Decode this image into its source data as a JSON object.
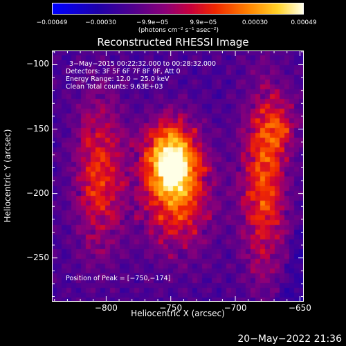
{
  "chart_data": {
    "type": "heatmap",
    "title": "Reconstructed RHESSI Image",
    "xlabel": "Heliocentric X (arcsec)",
    "ylabel": "Heliocentric Y (arcsec)",
    "xlim": [
      -842,
      -647
    ],
    "ylim": [
      -284,
      -89
    ],
    "x_ticks": [
      -800,
      -750,
      -700,
      -650
    ],
    "y_ticks": [
      -100,
      -150,
      -200,
      -250
    ],
    "x_tick_labels": [
      "−800",
      "−750",
      "−700",
      "−650"
    ],
    "y_tick_labels": [
      "−100",
      "−150",
      "−200",
      "−250"
    ],
    "colorbar": {
      "min": -0.00049,
      "max": 0.00049,
      "tick_labels": [
        "−0.00049",
        "−0.00030",
        "−9.9e−05",
        "9.9e−05",
        "0.00030",
        "0.00049"
      ],
      "tick_values": [
        -0.00049,
        -0.0003,
        -9.9e-05,
        9.9e-05,
        0.0003,
        0.00049
      ],
      "unit_label": "(photons cm⁻² s⁻¹ asec⁻²)"
    },
    "sources": [
      {
        "x": -750,
        "y": -174,
        "sx": 14,
        "sy": 20,
        "amp": 1.0
      },
      {
        "x": -745,
        "y": -205,
        "sx": 18,
        "sy": 28,
        "amp": 0.55
      },
      {
        "x": -805,
        "y": -185,
        "sx": 13,
        "sy": 40,
        "amp": 0.55
      },
      {
        "x": -678,
        "y": -190,
        "sx": 12,
        "sy": 48,
        "amp": 0.62
      },
      {
        "x": -665,
        "y": -148,
        "sx": 10,
        "sy": 14,
        "amp": 0.35
      }
    ],
    "annotations": [
      "3−May−2015 00:22:32.000 to 00:28:32.000",
      "Detectors: 3F 5F 6F 7F 8F 9F, Att 0",
      "Energy Range: 12.0 − 25.0 keV",
      "Clean     Total counts: 9.63E+03"
    ],
    "peak_label": "Position of Peak = [−750,−174]",
    "peak": [
      -750,
      -174
    ]
  },
  "timestamp": "20−May−2022 21:36",
  "colors": {
    "background": "#000000",
    "foreground": "#ffffff"
  }
}
